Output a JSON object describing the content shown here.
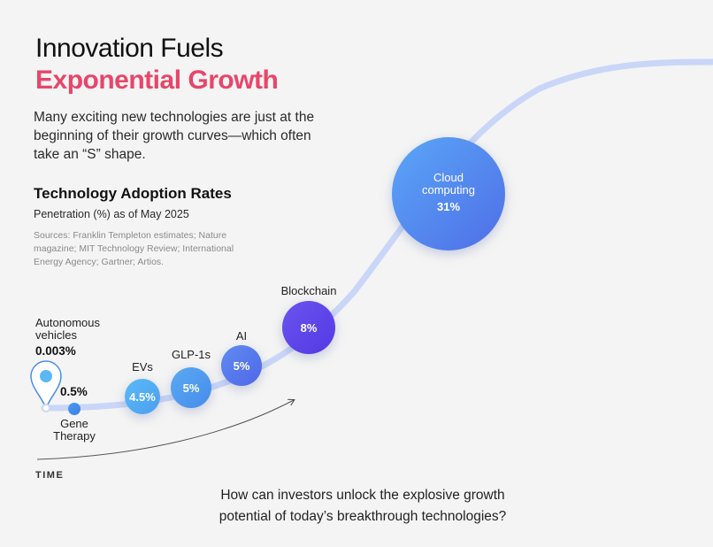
{
  "header": {
    "title_line1": "Innovation Fuels",
    "title_line2": "Exponential Growth",
    "intro": "Many exciting new technologies are just at the beginning of their growth curves—which often take an “S” shape."
  },
  "chart_info": {
    "subtitle": "Technology Adoption Rates",
    "description": "Penetration (%) as of May 2025",
    "sources": "Sources: Franklin Templeton estimates; Nature magazine; MIT Technology Review; International Energy Agency; Gartner; Artios."
  },
  "axis": {
    "x_label": "TIME"
  },
  "footer": {
    "question_line1": "How can investors unlock the explosive growth",
    "question_line2": "potential of today’s breakthrough technologies?"
  },
  "colors": {
    "accent_pink": "#e8456a",
    "curve": "#c7d3f7",
    "light_blue": "#4aa8f0",
    "violet": "#5b3fe6"
  },
  "chart_data": {
    "type": "scatter",
    "title": "Technology Adoption Rates",
    "subtitle": "Penetration (%) as of May 2025",
    "xlabel": "TIME",
    "ylabel": "",
    "points": [
      {
        "name": "Autonomous vehicles",
        "label_lines": [
          "Autonomous",
          "vehicles"
        ],
        "value": 0.003,
        "display": "0.003%"
      },
      {
        "name": "Gene Therapy",
        "label_lines": [
          "Gene",
          "Therapy"
        ],
        "value": 0.5,
        "display": "0.5%"
      },
      {
        "name": "EVs",
        "label_lines": [
          "EVs"
        ],
        "value": 4.5,
        "display": "4.5%"
      },
      {
        "name": "GLP-1s",
        "label_lines": [
          "GLP-1s"
        ],
        "value": 5,
        "display": "5%"
      },
      {
        "name": "AI",
        "label_lines": [
          "AI"
        ],
        "value": 5,
        "display": "5%"
      },
      {
        "name": "Blockchain",
        "label_lines": [
          "Blockchain"
        ],
        "value": 8,
        "display": "8%"
      },
      {
        "name": "Cloud computing",
        "label_lines": [
          "Cloud",
          "computing"
        ],
        "value": 31,
        "display": "31%"
      }
    ],
    "grid": false,
    "legend": "none"
  }
}
